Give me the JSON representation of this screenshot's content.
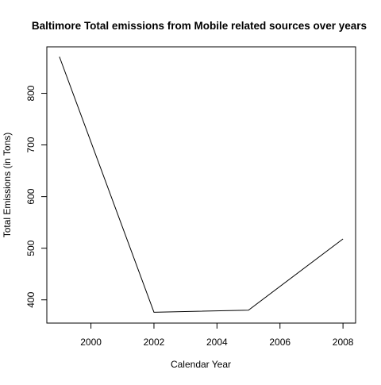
{
  "chart_data": {
    "type": "line",
    "title": "Baltimore Total emissions from Mobile related sources over years",
    "xlabel": "Calendar Year",
    "ylabel": "Total Emissions (in Tons)",
    "x": [
      1999,
      2002,
      2005,
      2008
    ],
    "series": [
      {
        "values": [
          870.8,
          376.0,
          380.0,
          518.0
        ]
      }
    ],
    "xlim": [
      1998.6,
      2008.4
    ],
    "ylim": [
      355,
      890
    ],
    "xticks": [
      "2000",
      "2002",
      "2004",
      "2006",
      "2008"
    ],
    "yticks": [
      "400",
      "500",
      "600",
      "700",
      "800"
    ],
    "grid": false,
    "legend": "none",
    "line_color": "#000000"
  }
}
